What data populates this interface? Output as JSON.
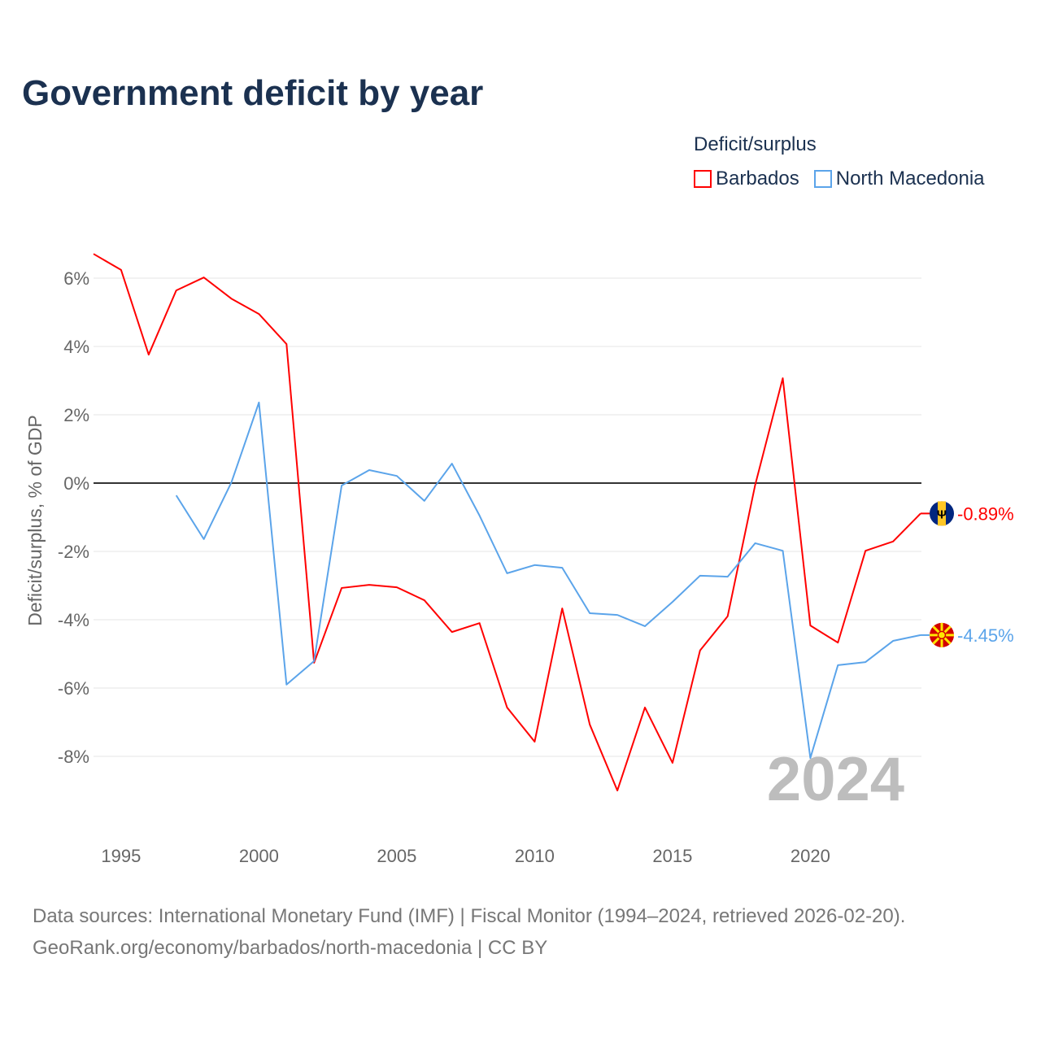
{
  "title": "Government deficit by year",
  "legend": {
    "title": "Deficit/surplus",
    "items": [
      {
        "name": "Barbados",
        "color": "#ff0000"
      },
      {
        "name": "North Macedonia",
        "color": "#5ba4ea"
      }
    ]
  },
  "year_watermark": "2024",
  "source": {
    "line1": "Data sources: International Monetary Fund (IMF) | Fiscal Monitor (1994–2024, retrieved 2026-02-20).",
    "line2": "GeoRank.org/economy/barbados/north-macedonia | CC BY"
  },
  "chart_data": {
    "type": "line",
    "title": "Government deficit by year",
    "xlabel": "",
    "ylabel": "Deficit/surplus, % of GDP",
    "xlim": [
      1994,
      2024
    ],
    "ylim": [
      -10,
      7
    ],
    "x_ticks": [
      1995,
      2000,
      2005,
      2010,
      2015,
      2020
    ],
    "y_ticks": [
      6,
      4,
      2,
      0,
      -2,
      -4,
      -6,
      -8
    ],
    "y_tick_labels": [
      "6%",
      "4%",
      "2%",
      "0%",
      "-2%",
      "-4%",
      "-6%",
      "-8%"
    ],
    "legend_position": "top-right",
    "series": [
      {
        "name": "Barbados",
        "color": "#ff0000",
        "end_label": "-0.89%",
        "flag": "barbados-flag",
        "x": [
          1994,
          1995,
          1996,
          1997,
          1998,
          1999,
          2000,
          2001,
          2002,
          2003,
          2004,
          2005,
          2006,
          2007,
          2008,
          2009,
          2010,
          2011,
          2012,
          2013,
          2014,
          2015,
          2016,
          2017,
          2018,
          2019,
          2020,
          2021,
          2022,
          2023,
          2024
        ],
        "values": [
          6.71,
          6.24,
          3.76,
          5.64,
          6.02,
          5.4,
          4.95,
          4.07,
          -5.26,
          -3.07,
          -2.98,
          -3.05,
          -3.43,
          -4.36,
          -4.1,
          -6.57,
          -7.57,
          -3.67,
          -7.07,
          -9.0,
          -6.57,
          -8.19,
          -4.9,
          -3.9,
          -0.05,
          3.07,
          -4.17,
          -4.67,
          -1.98,
          -1.71,
          -0.89
        ]
      },
      {
        "name": "North Macedonia",
        "color": "#5ba4ea",
        "end_label": "-4.45%",
        "flag": "north-macedonia-flag",
        "x": [
          1997,
          1998,
          1999,
          2000,
          2001,
          2002,
          2003,
          2004,
          2005,
          2006,
          2007,
          2008,
          2009,
          2010,
          2011,
          2012,
          2013,
          2014,
          2015,
          2016,
          2017,
          2018,
          2019,
          2020,
          2021,
          2022,
          2023,
          2024
        ],
        "values": [
          -0.36,
          -1.64,
          0.02,
          2.36,
          -5.9,
          -5.21,
          -0.07,
          0.38,
          0.21,
          -0.52,
          0.57,
          -0.95,
          -2.64,
          -2.4,
          -2.48,
          -3.81,
          -3.86,
          -4.19,
          -3.48,
          -2.71,
          -2.74,
          -1.76,
          -1.98,
          -8.05,
          -5.33,
          -5.24,
          -4.62,
          -4.45
        ]
      }
    ]
  }
}
